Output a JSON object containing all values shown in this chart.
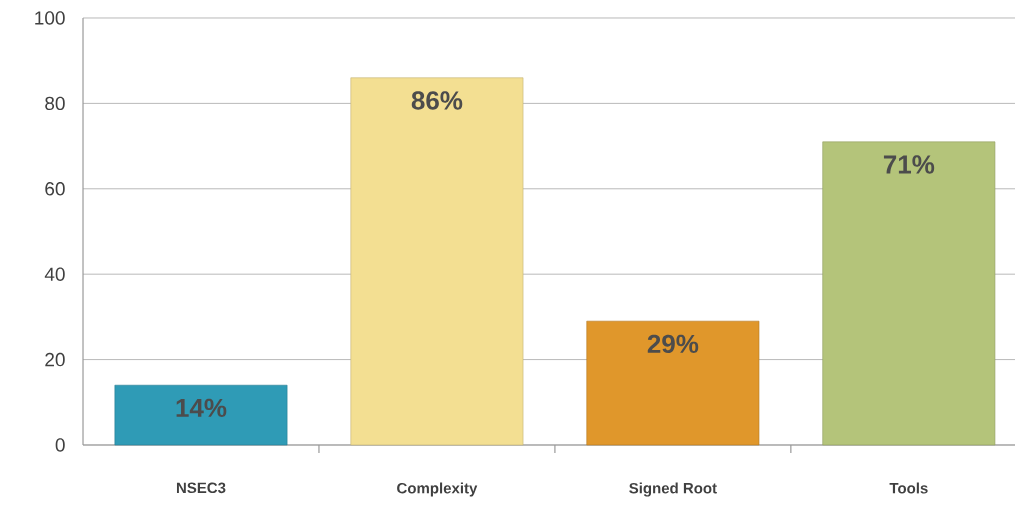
{
  "chart_data": {
    "type": "bar",
    "categories": [
      "NSEC3",
      "Complexity",
      "Signed Root",
      "Tools"
    ],
    "values": [
      14,
      86,
      29,
      71
    ],
    "colors": [
      "#2f9bb6",
      "#f3df92",
      "#e0972b",
      "#b4c47a"
    ],
    "value_labels": [
      "14%",
      "86%",
      "29%",
      "71%"
    ],
    "ylim": [
      0,
      100
    ],
    "yticks": [
      0,
      20,
      40,
      60,
      80,
      100
    ],
    "grid": "y"
  }
}
